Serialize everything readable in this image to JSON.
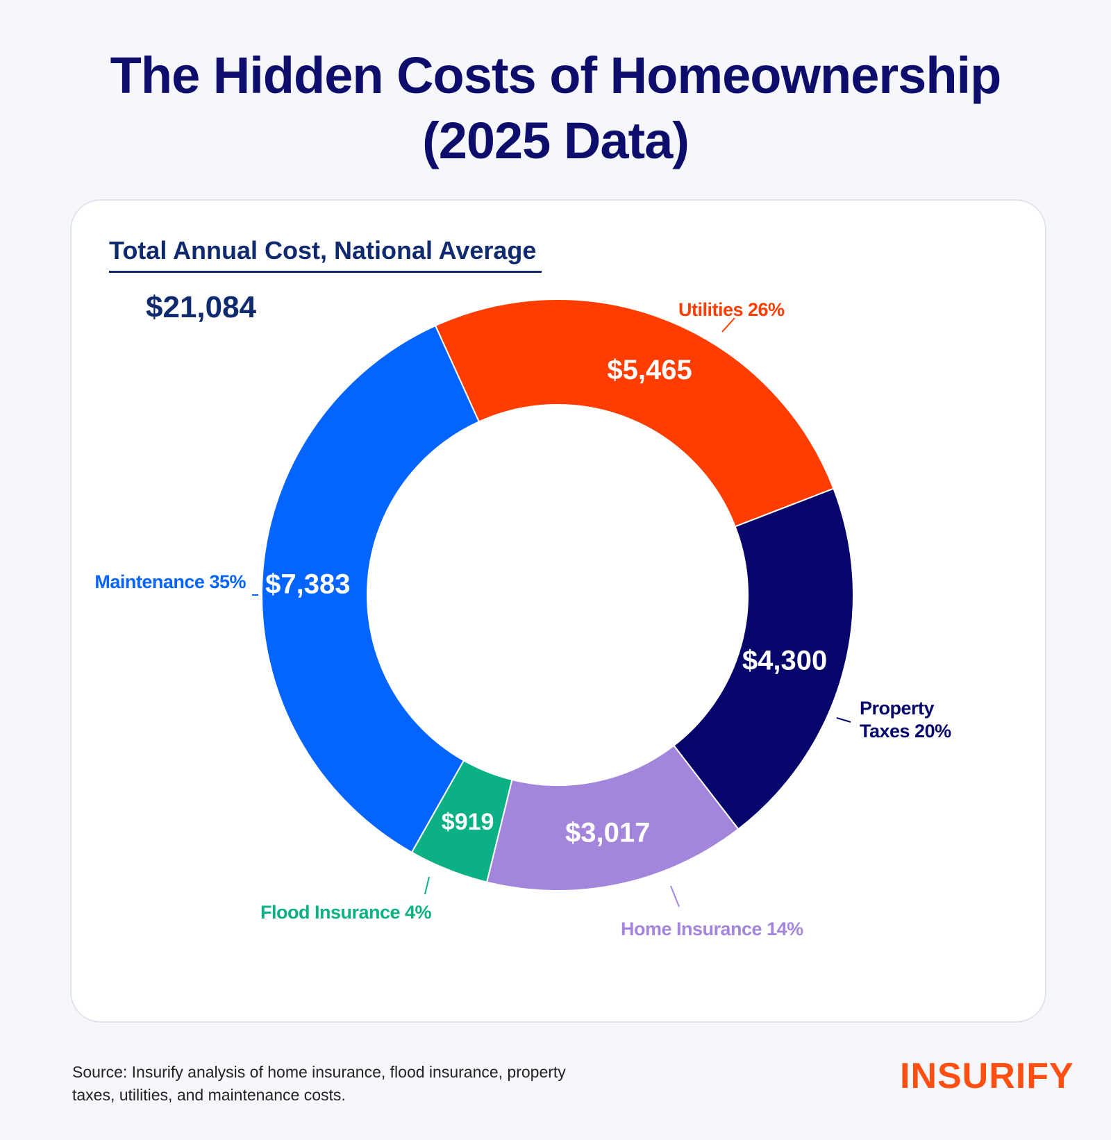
{
  "title_line1": "The Hidden Costs of Homeownership",
  "title_line2": "(2025 Data)",
  "subtitle": "Total Annual Cost, National Average",
  "total": "$21,084",
  "source": "Source: Insurify analysis of home insurance, flood insurance, property taxes, utilities, and maintenance costs.",
  "logo": "INSURIFY",
  "chart_data": {
    "type": "pie",
    "donut": true,
    "title": "Total Annual Cost, National Average",
    "total": 21084,
    "categories": [
      "Utilities",
      "Property Taxes",
      "Home Insurance",
      "Flood Insurance",
      "Maintenance"
    ],
    "values": [
      5465,
      4300,
      3017,
      919,
      7383
    ],
    "percents": [
      26,
      20,
      14,
      4,
      35
    ],
    "value_labels": [
      "$5,465",
      "$4,300",
      "$3,017",
      "$919",
      "$7,383"
    ],
    "legend_labels": [
      "Utilities 26%",
      "Property Taxes 20%",
      "Home Insurance 14%",
      "Flood Insurance 4%",
      "Maintenance 35%"
    ],
    "colors": [
      "#ff3d00",
      "#05056b",
      "#a385dc",
      "#0bb185",
      "#0364ff"
    ]
  }
}
